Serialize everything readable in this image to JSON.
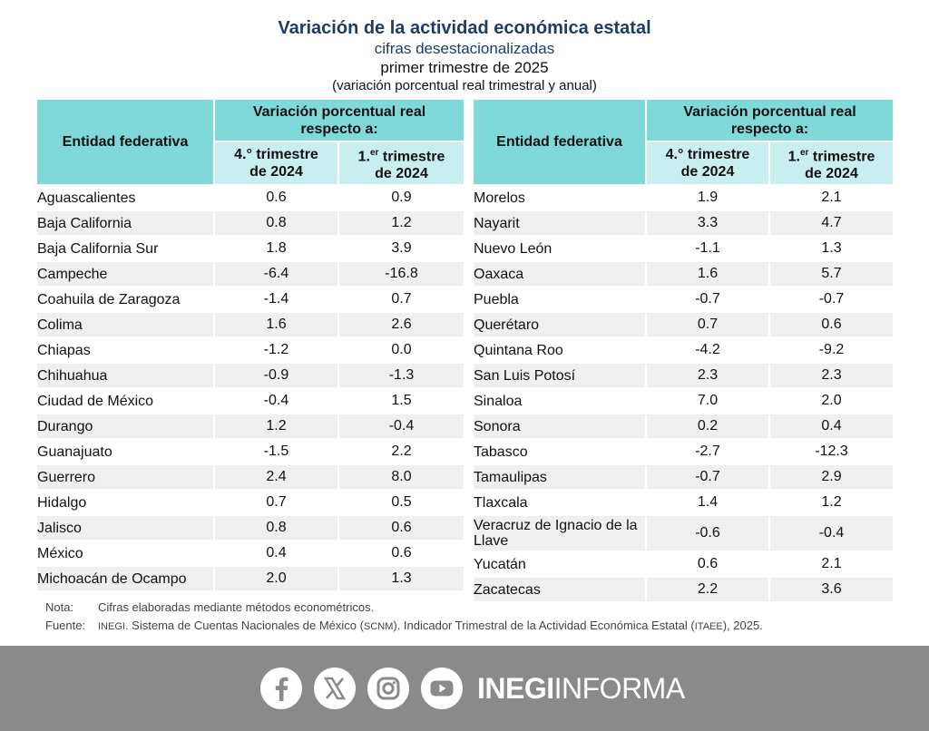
{
  "header": {
    "title": "Variación de la actividad económica estatal",
    "subtitle": "cifras desestacionalizadas",
    "period": "primer trimestre de 2025",
    "unit": "(variación porcentual real trimestral y anual)"
  },
  "table": {
    "col_entity": "Entidad federativa",
    "col_group": "Variación porcentual real respecto a:",
    "col_q4": "4.° trimestre de 2024",
    "col_q1_pre": "1.",
    "col_q1_sup": "er",
    "col_q1_post": " trimestre de 2024",
    "left": [
      {
        "name": "Aguascalientes",
        "q4": "0.6",
        "q1": "0.9"
      },
      {
        "name": "Baja California",
        "q4": "0.8",
        "q1": "1.2"
      },
      {
        "name": "Baja California Sur",
        "q4": "1.8",
        "q1": "3.9"
      },
      {
        "name": "Campeche",
        "q4": "-6.4",
        "q1": "-16.8"
      },
      {
        "name": "Coahuila de Zaragoza",
        "q4": "-1.4",
        "q1": "0.7"
      },
      {
        "name": "Colima",
        "q4": "1.6",
        "q1": "2.6"
      },
      {
        "name": "Chiapas",
        "q4": "-1.2",
        "q1": "0.0"
      },
      {
        "name": "Chihuahua",
        "q4": "-0.9",
        "q1": "-1.3"
      },
      {
        "name": "Ciudad de México",
        "q4": "-0.4",
        "q1": "1.5"
      },
      {
        "name": "Durango",
        "q4": "1.2",
        "q1": "-0.4"
      },
      {
        "name": "Guanajuato",
        "q4": "-1.5",
        "q1": "2.2"
      },
      {
        "name": "Guerrero",
        "q4": "2.4",
        "q1": "8.0"
      },
      {
        "name": "Hidalgo",
        "q4": "0.7",
        "q1": "0.5"
      },
      {
        "name": "Jalisco",
        "q4": "0.8",
        "q1": "0.6"
      },
      {
        "name": "México",
        "q4": "0.4",
        "q1": "0.6"
      },
      {
        "name": "Michoacán de Ocampo",
        "q4": "2.0",
        "q1": "1.3"
      }
    ],
    "right": [
      {
        "name": "Morelos",
        "q4": "1.9",
        "q1": "2.1"
      },
      {
        "name": "Nayarit",
        "q4": "3.3",
        "q1": "4.7"
      },
      {
        "name": "Nuevo León",
        "q4": "-1.1",
        "q1": "1.3"
      },
      {
        "name": "Oaxaca",
        "q4": "1.6",
        "q1": "5.7"
      },
      {
        "name": "Puebla",
        "q4": "-0.7",
        "q1": "-0.7"
      },
      {
        "name": "Querétaro",
        "q4": "0.7",
        "q1": "0.6"
      },
      {
        "name": "Quintana Roo",
        "q4": "-4.2",
        "q1": "-9.2"
      },
      {
        "name": "San Luis Potosí",
        "q4": "2.3",
        "q1": "2.3"
      },
      {
        "name": "Sinaloa",
        "q4": "7.0",
        "q1": "2.0"
      },
      {
        "name": "Sonora",
        "q4": "0.2",
        "q1": "0.4"
      },
      {
        "name": "Tabasco",
        "q4": "-2.7",
        "q1": "-12.3"
      },
      {
        "name": "Tamaulipas",
        "q4": "-0.7",
        "q1": "2.9"
      },
      {
        "name": "Tlaxcala",
        "q4": "1.4",
        "q1": "1.2"
      },
      {
        "name": "Veracruz de Ignacio de la Llave",
        "q4": "-0.6",
        "q1": "-0.4"
      },
      {
        "name": "Yucatán",
        "q4": "0.6",
        "q1": "2.1"
      },
      {
        "name": "Zacatecas",
        "q4": "2.2",
        "q1": "3.6"
      }
    ]
  },
  "notes": {
    "nota_label": "Nota:",
    "nota_text": "Cifras elaboradas mediante métodos econométricos.",
    "fuente_label": "Fuente:",
    "fuente_inegi": "INEGI",
    "fuente_t1": ". Sistema de Cuentas Nacionales de México (",
    "fuente_scnm": "SCNM",
    "fuente_t2": "). Indicador Trimestral de la Actividad Económica Estatal (",
    "fuente_itaee": "ITAEE",
    "fuente_t3": "), 2025."
  },
  "footer": {
    "icons": [
      "facebook-icon",
      "x-icon",
      "instagram-icon",
      "youtube-icon"
    ],
    "brand_bold": "INEGI",
    "brand_light": "INFORMA"
  },
  "colors": {
    "header_dark": "#7fd9d8",
    "header_light": "#c8eef0",
    "row_alt": "#efefef",
    "title": "#1f3b66",
    "footer_bg": "#8a8a8a"
  }
}
